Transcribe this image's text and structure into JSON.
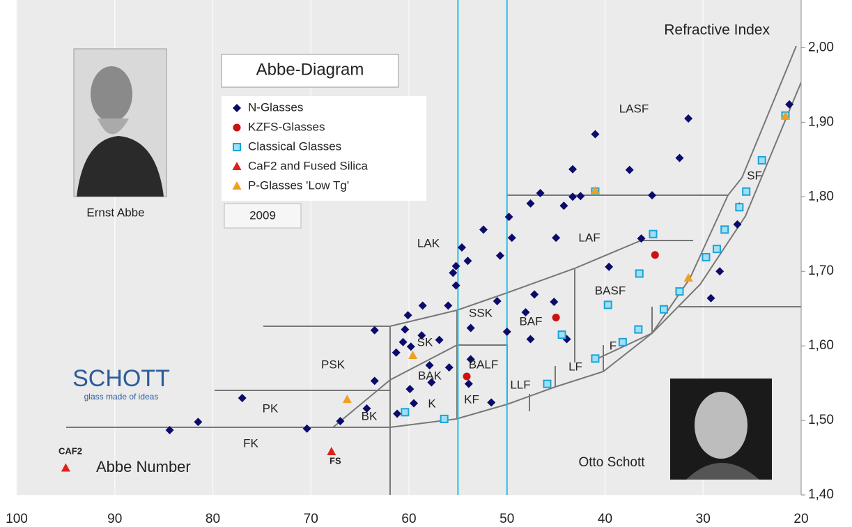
{
  "chart_data": {
    "type": "scatter",
    "title": "Abbe-Diagram",
    "subtitle": "2009",
    "xlabel": "Abbe Number",
    "ylabel": "Refractive Index",
    "xlim": [
      100,
      20
    ],
    "ylim": [
      1.4,
      2.064
    ],
    "xticks": [
      100,
      90,
      80,
      70,
      60,
      50,
      40,
      30,
      20
    ],
    "yticks": [
      {
        "value": 1.4,
        "label": "1,40"
      },
      {
        "value": 1.5,
        "label": "1,50"
      },
      {
        "value": 1.6,
        "label": "1,60"
      },
      {
        "value": 1.7,
        "label": "1,70"
      },
      {
        "value": 1.8,
        "label": "1,80"
      },
      {
        "value": 1.9,
        "label": "1,90"
      },
      {
        "value": 2.0,
        "label": "2,00"
      }
    ],
    "grid": "x",
    "reference_lines": {
      "x": [
        50,
        55
      ],
      "color": "#22c0e8"
    },
    "series": [
      {
        "name": "N-Glasses",
        "color": "#0b0b6b",
        "marker": "diamond",
        "x": [
          84.4,
          81.5,
          77.0,
          70.4,
          67.0,
          63.5,
          63.5,
          61.3,
          60.6,
          60.4,
          60.1,
          58.6,
          58.7,
          59.8,
          59.9,
          59.5,
          61.2,
          56.9,
          57.9,
          56.0,
          55.9,
          55.2,
          55.5,
          55.2,
          54.6,
          54.0,
          52.4,
          50.7,
          51.0,
          49.8,
          49.5,
          47.6,
          46.6,
          47.6,
          45.2,
          45.0,
          44.2,
          43.9,
          43.3,
          43.3,
          42.5,
          41.0,
          39.6,
          37.5,
          35.2,
          32.4,
          31.5,
          29.2,
          28.3,
          26.5,
          21.2,
          53.7,
          53.7,
          51.6,
          48.1,
          47.2,
          50.0,
          57.7,
          53.9,
          64.3,
          26.3,
          36.3
        ],
        "y": [
          1.487,
          1.498,
          1.53,
          1.489,
          1.499,
          1.553,
          1.621,
          1.591,
          1.605,
          1.622,
          1.641,
          1.654,
          1.614,
          1.599,
          1.542,
          1.523,
          1.509,
          1.608,
          1.574,
          1.654,
          1.571,
          1.681,
          1.698,
          1.707,
          1.732,
          1.714,
          1.756,
          1.721,
          1.66,
          1.773,
          1.745,
          1.791,
          1.805,
          1.609,
          1.659,
          1.745,
          1.788,
          1.609,
          1.8,
          1.837,
          1.801,
          1.884,
          1.706,
          1.836,
          1.802,
          1.852,
          1.905,
          1.664,
          1.7,
          1.763,
          1.924,
          1.624,
          1.582,
          1.524,
          1.645,
          1.669,
          1.619,
          1.551,
          1.549,
          1.516,
          1.787,
          1.744
        ]
      },
      {
        "name": "KZFS-Glasses",
        "color": "#cc1111",
        "marker": "circle",
        "x": [
          54.1,
          45.0,
          34.9
        ],
        "y": [
          1.559,
          1.638,
          1.722
        ]
      },
      {
        "name": "Classical Glasses",
        "color": "#1aa3d8",
        "marker": "square",
        "x": [
          60.4,
          56.4,
          45.9,
          44.4,
          41.0,
          38.2,
          36.6,
          39.7,
          36.5,
          35.1,
          34.0,
          32.4,
          29.7,
          28.6,
          27.8,
          26.3,
          25.6,
          24.0,
          21.6,
          41.0
        ],
        "y": [
          1.511,
          1.502,
          1.549,
          1.615,
          1.583,
          1.605,
          1.622,
          1.655,
          1.697,
          1.75,
          1.649,
          1.673,
          1.719,
          1.73,
          1.756,
          1.786,
          1.807,
          1.849,
          1.909,
          1.807
        ]
      },
      {
        "name": "CaF2 and Fused Silica",
        "color": "#e0201a",
        "marker": "triangle",
        "x": [
          95.0,
          67.9
        ],
        "y": [
          1.436,
          1.458
        ]
      },
      {
        "name": "P-Glasses 'Low Tg'",
        "color": "#f0a020",
        "marker": "triangle",
        "x": [
          66.3,
          59.6,
          31.5,
          41.0,
          21.6
        ],
        "y": [
          1.528,
          1.587,
          1.691,
          1.808,
          1.908
        ]
      }
    ],
    "region_labels": [
      "LASF",
      "SF",
      "LAK",
      "LAF",
      "SSK",
      "BAF",
      "BASF",
      "SK",
      "PSK",
      "BALF",
      "BAK",
      "LLF",
      "LF",
      "F",
      "K",
      "KF",
      "BK",
      "PK",
      "FK"
    ],
    "point_labels": [
      "CAF2",
      "FS"
    ],
    "photo_captions": [
      "Ernst Abbe",
      "Otto Schott"
    ],
    "logo": {
      "name": "SCHOTT",
      "slogan": "glass made of ideas"
    }
  }
}
